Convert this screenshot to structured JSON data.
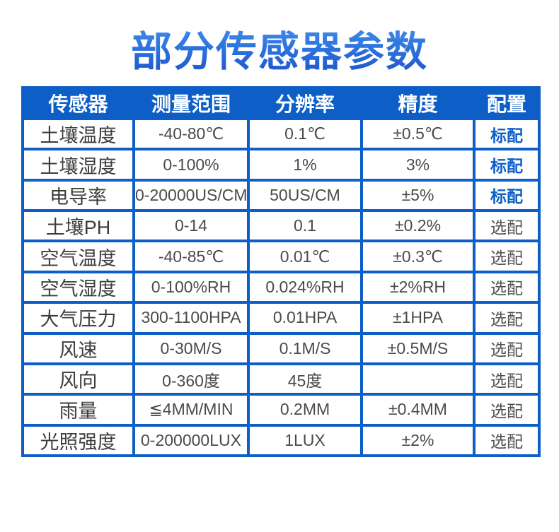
{
  "page_title": "部分传感器参数",
  "colors": {
    "primary_blue": "#0d5ec6",
    "title_gradient_top": "#4a92ea",
    "title_gradient_bottom": "#1b53c8",
    "header_text": "#ffffff",
    "sensor_text": "#3d3d3d",
    "value_text": "#4a4a4a",
    "standard_badge": "#0d5ec6",
    "optional_badge": "#4f4f4f"
  },
  "table": {
    "headers": [
      "传感器",
      "测量范围",
      "分辨率",
      "精度",
      "配置"
    ],
    "rows": [
      {
        "sensor": "土壤温度",
        "range": "-40-80℃",
        "resolution": "0.1℃",
        "accuracy": "±0.5℃",
        "config": "标配",
        "config_type": "standard"
      },
      {
        "sensor": "土壤湿度",
        "range": "0-100%",
        "resolution": "1%",
        "accuracy": "3%",
        "config": "标配",
        "config_type": "standard"
      },
      {
        "sensor": "电导率",
        "range": "0-20000US/CM",
        "resolution": "50US/CM",
        "accuracy": "±5%",
        "config": "标配",
        "config_type": "standard"
      },
      {
        "sensor": "土壤PH",
        "range": "0-14",
        "resolution": "0.1",
        "accuracy": "±0.2%",
        "config": "选配",
        "config_type": "optional"
      },
      {
        "sensor": "空气温度",
        "range": "-40-85℃",
        "resolution": "0.01℃",
        "accuracy": "±0.3℃",
        "config": "选配",
        "config_type": "optional"
      },
      {
        "sensor": "空气湿度",
        "range": "0-100%RH",
        "resolution": "0.024%RH",
        "accuracy": "±2%RH",
        "config": "选配",
        "config_type": "optional"
      },
      {
        "sensor": "大气压力",
        "range": "300-1100HPA",
        "resolution": "0.01HPA",
        "accuracy": "±1HPA",
        "config": "选配",
        "config_type": "optional"
      },
      {
        "sensor": "风速",
        "range": "0-30M/S",
        "resolution": "0.1M/S",
        "accuracy": "±0.5M/S",
        "config": "选配",
        "config_type": "optional"
      },
      {
        "sensor": "风向",
        "range": "0-360度",
        "resolution": "45度",
        "accuracy": "",
        "config": "选配",
        "config_type": "optional"
      },
      {
        "sensor": "雨量",
        "range": "≦4MM/MIN",
        "resolution": "0.2MM",
        "accuracy": "±0.4MM",
        "config": "选配",
        "config_type": "optional"
      },
      {
        "sensor": "光照强度",
        "range": "0-200000LUX",
        "resolution": "1LUX",
        "accuracy": "±2%",
        "config": "选配",
        "config_type": "optional"
      }
    ]
  }
}
